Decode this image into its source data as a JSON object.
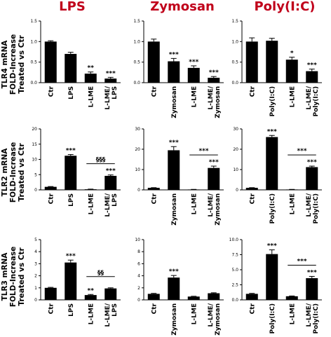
{
  "colors": {
    "title": "#c0001a",
    "bar": "#000000",
    "axis": "#000000",
    "text": "#000000"
  },
  "column_titles": [
    "LPS",
    "Zymosan",
    "Poly(I:C)"
  ],
  "row_labels": [
    [
      "TLR4 mRNA",
      "FOLD-Increase",
      "Treated vs Ctr"
    ],
    [
      "TLR2 mRNA",
      "FOLD-Increase",
      "Treated vs Ctr"
    ],
    [
      "TLR3 mRNA",
      "FOLD-Increase",
      "Treated vs Ctr"
    ]
  ],
  "chart_data": [
    {
      "type": "bar",
      "row": 0,
      "col": 0,
      "ylim": [
        0,
        1.5
      ],
      "yticks": [
        "0.0",
        "0.5",
        "1.0",
        "1.5"
      ],
      "categories": [
        [
          "Ctr"
        ],
        [
          "LPS"
        ],
        [
          "L-LME"
        ],
        [
          "L-LME/",
          "LPS"
        ]
      ],
      "values": [
        1.0,
        0.7,
        0.22,
        0.1
      ],
      "errors": [
        0.02,
        0.04,
        0.04,
        0.03
      ],
      "sig": [
        "",
        "",
        "**",
        "***"
      ],
      "bracket": null
    },
    {
      "type": "bar",
      "row": 0,
      "col": 1,
      "ylim": [
        0,
        1.5
      ],
      "yticks": [
        "0.0",
        "0.5",
        "1.0",
        "1.5"
      ],
      "categories": [
        [
          "Ctr"
        ],
        [
          "Zymosan"
        ],
        [
          "L-LME"
        ],
        [
          "L-LME/",
          "Zymosan"
        ]
      ],
      "values": [
        1.0,
        0.52,
        0.36,
        0.12
      ],
      "errors": [
        0.06,
        0.07,
        0.05,
        0.03
      ],
      "sig": [
        "",
        "***",
        "***",
        "***"
      ],
      "bracket": null
    },
    {
      "type": "bar",
      "row": 0,
      "col": 2,
      "ylim": [
        0,
        1.5
      ],
      "yticks": [
        "0.0",
        "0.5",
        "1.0",
        "1.5"
      ],
      "categories": [
        [
          "Ctr"
        ],
        [
          "Poly(I:C)"
        ],
        [
          "L-LME"
        ],
        [
          "L-LME/",
          "Poly(I:C)"
        ]
      ],
      "values": [
        1.0,
        1.02,
        0.56,
        0.28
      ],
      "errors": [
        0.09,
        0.06,
        0.06,
        0.05
      ],
      "sig": [
        "",
        "",
        "*",
        "***"
      ],
      "bracket": null
    },
    {
      "type": "bar",
      "row": 1,
      "col": 0,
      "ylim": [
        0,
        20
      ],
      "yticks": [
        "0",
        "5",
        "10",
        "15",
        "20"
      ],
      "categories": [
        [
          "Ctr"
        ],
        [
          "LPS"
        ],
        [
          "L-LME"
        ],
        [
          "L-LME/",
          "LPS"
        ]
      ],
      "values": [
        1.0,
        11.2,
        0.2,
        4.6
      ],
      "errors": [
        0.1,
        0.4,
        0.05,
        0.3
      ],
      "sig": [
        "",
        "***",
        "",
        "***"
      ],
      "bracket": {
        "from": 2,
        "to": 3,
        "label": "§§§"
      }
    },
    {
      "type": "bar",
      "row": 1,
      "col": 1,
      "ylim": [
        0,
        30
      ],
      "yticks": [
        "0",
        "10",
        "20",
        "30"
      ],
      "categories": [
        [
          "Ctr"
        ],
        [
          "Zymosan"
        ],
        [
          "L-LME"
        ],
        [
          "L-LME/",
          "Zymosan"
        ]
      ],
      "values": [
        1.0,
        19.5,
        0.2,
        10.8
      ],
      "errors": [
        0.1,
        1.8,
        0.05,
        0.9
      ],
      "sig": [
        "",
        "***",
        "",
        "***"
      ],
      "bracket": {
        "from": 2,
        "to": 3,
        "label": "***"
      }
    },
    {
      "type": "bar",
      "row": 1,
      "col": 2,
      "ylim": [
        0,
        30
      ],
      "yticks": [
        "0",
        "10",
        "20",
        "30"
      ],
      "categories": [
        [
          "Ctr"
        ],
        [
          "Poly(I:C)"
        ],
        [
          "L-LME"
        ],
        [
          "L-LME/",
          "Poly(I:C)"
        ]
      ],
      "values": [
        1.0,
        26.0,
        0.2,
        11.2
      ],
      "errors": [
        0.1,
        0.8,
        0.05,
        0.5
      ],
      "sig": [
        "",
        "***",
        "",
        "***"
      ],
      "bracket": {
        "from": 2,
        "to": 3,
        "label": "***"
      }
    },
    {
      "type": "bar",
      "row": 2,
      "col": 0,
      "ylim": [
        0,
        5
      ],
      "yticks": [
        "0",
        "1",
        "2",
        "3",
        "4",
        "5"
      ],
      "categories": [
        [
          "Ctr"
        ],
        [
          "LPS"
        ],
        [
          "L-LME"
        ],
        [
          "L-LME/",
          "LPS"
        ]
      ],
      "values": [
        1.0,
        3.1,
        0.4,
        0.95
      ],
      "errors": [
        0.04,
        0.2,
        0.05,
        0.05
      ],
      "sig": [
        "",
        "***",
        "**",
        ""
      ],
      "bracket": {
        "from": 2,
        "to": 3,
        "label": "§§"
      }
    },
    {
      "type": "bar",
      "row": 2,
      "col": 1,
      "ylim": [
        0,
        10
      ],
      "yticks": [
        "0",
        "2",
        "4",
        "6",
        "8",
        "10"
      ],
      "categories": [
        [
          "Ctr"
        ],
        [
          "Zymosan"
        ],
        [
          "L-LME"
        ],
        [
          "L-LME/",
          "Zymosan"
        ]
      ],
      "values": [
        1.0,
        3.7,
        0.55,
        1.1
      ],
      "errors": [
        0.08,
        0.35,
        0.05,
        0.08
      ],
      "sig": [
        "",
        "***",
        "",
        ""
      ],
      "bracket": null
    },
    {
      "type": "bar",
      "row": 2,
      "col": 2,
      "ylim": [
        0,
        10
      ],
      "yticks": [
        "0.0",
        "2.5",
        "5.0",
        "7.5",
        "10.0"
      ],
      "categories": [
        [
          "Ctr"
        ],
        [
          "Poly(I:C)"
        ],
        [
          "L-LME"
        ],
        [
          "L-LME/",
          "Poly(I:C)"
        ]
      ],
      "values": [
        1.0,
        7.6,
        0.6,
        3.6
      ],
      "errors": [
        0.08,
        0.7,
        0.05,
        0.3
      ],
      "sig": [
        "",
        "***",
        "",
        "***"
      ],
      "bracket": {
        "from": 2,
        "to": 3,
        "label": "***"
      }
    }
  ]
}
